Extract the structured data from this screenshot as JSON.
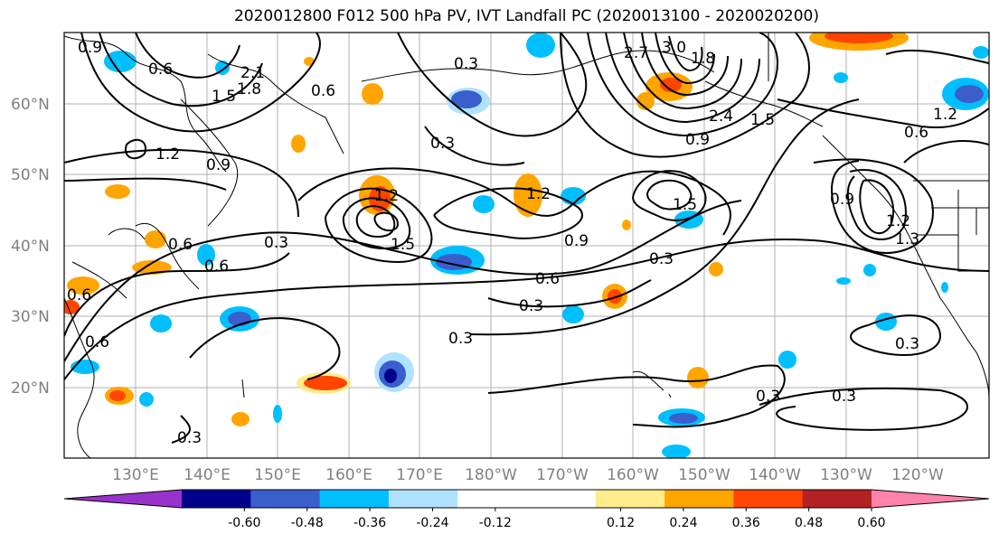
{
  "title": "2020012800 F012 500 hPa PV, IVT Landfall PC (2020013100 - 2020020200)",
  "lat_labels": [
    "60°N",
    "50°N",
    "40°N",
    "30°N",
    "20°N"
  ],
  "lon_labels": [
    "130°E",
    "140°E",
    "150°E",
    "160°E",
    "170°E",
    "180°W",
    "170°W",
    "160°W",
    "150°W",
    "140°W",
    "130°W",
    "120°W"
  ],
  "colorbar": {
    "colors": [
      "#9932cc",
      "#00008b",
      "#3a5fcd",
      "#00bfff",
      "#b0e2ff",
      "#ffffff",
      "#ffffff",
      "#ffec8b",
      "#ffa500",
      "#ff4500",
      "#b22222",
      "#ff82ab"
    ],
    "tick_labels": [
      "-0.60",
      "-0.48",
      "-0.36",
      "-0.24",
      "-0.12",
      "0.12",
      "0.24",
      "0.36",
      "0.48",
      "0.60"
    ]
  },
  "contour_labels": [
    "0.9",
    "0.6",
    "2.1",
    "1.8",
    "1.5",
    "1.2",
    "0.9",
    "0.3",
    "0.6",
    "0.3",
    "2.7",
    "3.0",
    "1.8",
    "2.4",
    "1.5",
    "0.9",
    "1.2",
    "0.6",
    "1.2",
    "1.5",
    "0.3",
    "0.6",
    "1.2",
    "0.9",
    "1.5",
    "0.3",
    "0.6",
    "0.3",
    "0.3",
    "0.3",
    "0.3",
    "0.3",
    "0.6",
    "0.9",
    "1.2",
    "0.6",
    "0.3",
    "0.6",
    "1.3"
  ]
}
